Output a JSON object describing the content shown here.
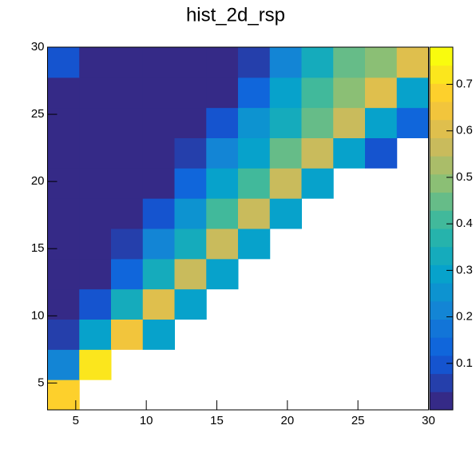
{
  "chart_data": {
    "type": "heatmap",
    "title": "hist_2d_rsp",
    "x_bins": [
      3,
      5.25,
      7.5,
      9.75,
      12,
      14.25,
      16.5,
      18.75,
      21,
      23.25,
      25.5,
      27.75,
      30
    ],
    "y_bins": [
      3,
      5.25,
      7.5,
      9.75,
      12,
      14.25,
      16.5,
      18.75,
      21,
      23.25,
      25.5,
      27.75,
      30
    ],
    "z": [
      [
        0.7,
        null,
        null,
        null,
        null,
        null,
        null,
        null,
        null,
        null,
        null,
        null
      ],
      [
        0.2,
        0.72,
        null,
        null,
        null,
        null,
        null,
        null,
        null,
        null,
        null,
        null
      ],
      [
        0.05,
        0.3,
        0.65,
        0.3,
        null,
        null,
        null,
        null,
        null,
        null,
        null,
        null
      ],
      [
        0.02,
        0.1,
        0.35,
        0.6,
        0.3,
        null,
        null,
        null,
        null,
        null,
        null,
        null
      ],
      [
        0.01,
        0.03,
        0.15,
        0.35,
        0.55,
        0.3,
        null,
        null,
        null,
        null,
        null,
        null
      ],
      [
        0.01,
        0.01,
        0.05,
        0.2,
        0.35,
        0.55,
        0.3,
        null,
        null,
        null,
        null,
        null
      ],
      [
        0.01,
        0.01,
        0.01,
        0.1,
        0.25,
        0.4,
        0.55,
        0.3,
        null,
        null,
        null,
        null
      ],
      [
        0.01,
        0.01,
        0.01,
        0.03,
        0.15,
        0.3,
        0.4,
        0.55,
        0.3,
        null,
        null,
        null
      ],
      [
        0.01,
        0.01,
        0.01,
        0.01,
        0.05,
        0.2,
        0.3,
        0.45,
        0.55,
        0.3,
        0.1,
        null
      ],
      [
        0.01,
        0.01,
        0.01,
        0.01,
        0.01,
        0.1,
        0.25,
        0.35,
        0.45,
        0.55,
        0.3,
        0.15
      ],
      [
        0.01,
        0.01,
        0.01,
        0.01,
        0.01,
        0.03,
        0.15,
        0.3,
        0.4,
        0.5,
        0.6,
        0.3
      ],
      [
        0.1,
        0.01,
        0.01,
        0.01,
        0.01,
        0.01,
        0.05,
        0.2,
        0.35,
        0.45,
        0.5,
        0.6
      ]
    ],
    "xlim": [
      3,
      30
    ],
    "ylim": [
      3,
      30
    ],
    "xticks": [
      5,
      10,
      15,
      20,
      25,
      30
    ],
    "yticks": [
      5,
      10,
      15,
      20,
      25,
      30
    ],
    "zlim": [
      0,
      0.78
    ],
    "zticks": [
      0.1,
      0.2,
      0.3,
      0.4,
      0.5,
      0.6,
      0.7
    ],
    "contour_levels": 20,
    "palette": [
      "#352a87",
      "#0f5cdd",
      "#1481d6",
      "#06a4ca",
      "#2eb7a4",
      "#87bf77",
      "#d1bb59",
      "#fec832",
      "#f9fb0e"
    ]
  }
}
